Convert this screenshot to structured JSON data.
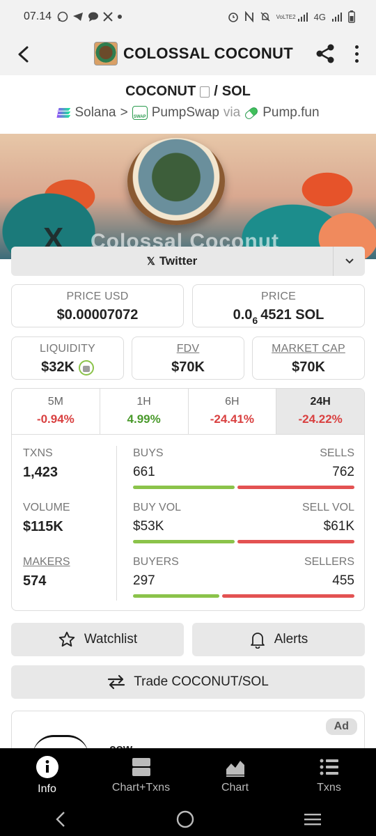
{
  "status_bar": {
    "time": "07.14",
    "network": "4G",
    "volte": "VoLTE2"
  },
  "header": {
    "title": "COLOSSAL COCONUT"
  },
  "pair": {
    "base": "COCONUT",
    "separator": "/",
    "quote": "SOL",
    "chain": "Solana",
    "chevron": ">",
    "dex": "PumpSwap",
    "via": "via",
    "launchpad": "Pump.fun"
  },
  "banner": {
    "text": "Colossal Coconut",
    "x_mark": "X"
  },
  "twitter": {
    "label": "Twitter",
    "glyph": "𝕏"
  },
  "price_usd": {
    "label": "PRICE USD",
    "value": "$0.00007072"
  },
  "price": {
    "label": "PRICE",
    "prefix": "0.0",
    "subscript": "6",
    "suffix": "4521 SOL"
  },
  "liquidity": {
    "label": "LIQUIDITY",
    "value": "$32K"
  },
  "fdv": {
    "label": "FDV",
    "value": "$70K"
  },
  "market_cap": {
    "label": "MARKET CAP",
    "value": "$70K"
  },
  "timeframes": [
    {
      "label": "5M",
      "value": "-0.94%"
    },
    {
      "label": "1H",
      "value": "4.99%"
    },
    {
      "label": "6H",
      "value": "-24.41%"
    },
    {
      "label": "24H",
      "value": "-24.22%"
    }
  ],
  "stats": {
    "txns": {
      "label": "TXNS",
      "value": "1,423"
    },
    "volume": {
      "label": "VOLUME",
      "value": "$115K"
    },
    "makers": {
      "label": "MAKERS",
      "value": "574"
    },
    "buys": {
      "label": "BUYS",
      "value": "661"
    },
    "sells": {
      "label": "SELLS",
      "value": "762"
    },
    "buy_vol": {
      "label": "BUY VOL",
      "value": "$53K"
    },
    "sell_vol": {
      "label": "SELL VOL",
      "value": "$61K"
    },
    "buyers": {
      "label": "BUYERS",
      "value": "297"
    },
    "sellers": {
      "label": "SELLERS",
      "value": "455"
    },
    "ratios": {
      "txns_buy_share": 0.4645,
      "vol_buy_share": 0.465,
      "makers_buy_share": 0.395
    }
  },
  "actions": {
    "watchlist": "Watchlist",
    "alerts": "Alerts",
    "trade": "Trade COCONUT/SOL"
  },
  "ad": {
    "badge": "Ad",
    "title": "cow"
  },
  "nav": [
    {
      "label": "Info",
      "icon": "info-icon"
    },
    {
      "label": "Chart+Txns",
      "icon": "chart-txns-icon"
    },
    {
      "label": "Chart",
      "icon": "area-chart-icon"
    },
    {
      "label": "Txns",
      "icon": "list-icon"
    }
  ],
  "colors": {
    "positive": "#4a9a2c",
    "negative": "#d94040",
    "buy_bar": "#8bc34a",
    "sell_bar": "#e35252"
  }
}
